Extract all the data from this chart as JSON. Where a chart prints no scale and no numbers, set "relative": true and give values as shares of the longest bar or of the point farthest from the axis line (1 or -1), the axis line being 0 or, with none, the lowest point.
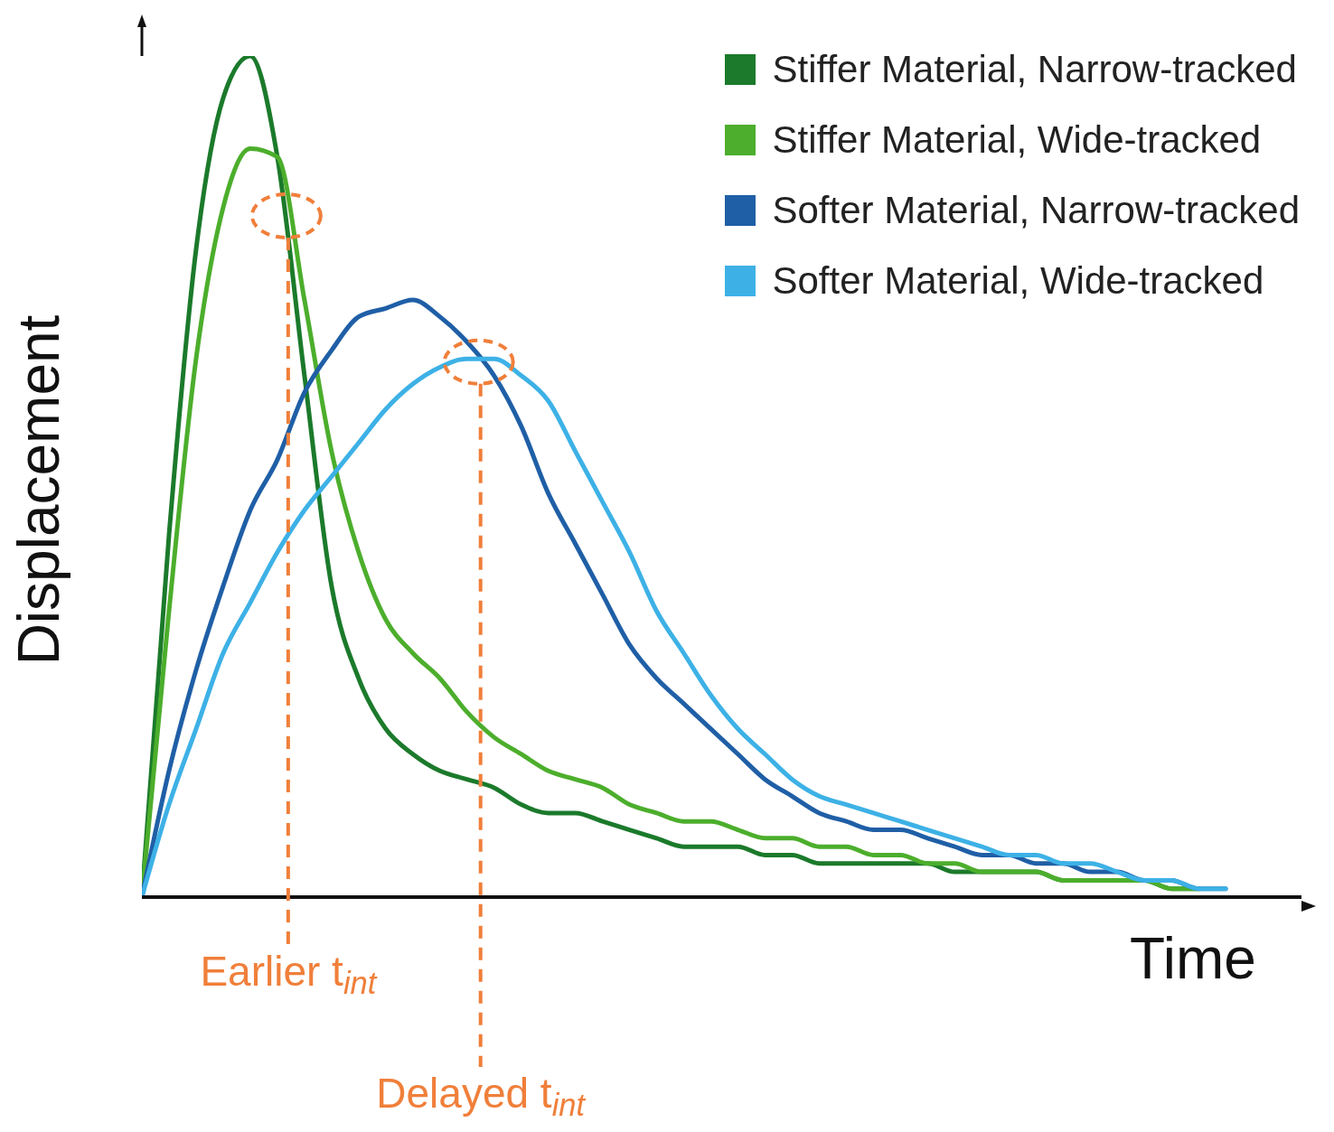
{
  "chart_data": {
    "type": "line",
    "relative": true,
    "xlabel": "Time",
    "ylabel": "Displacement",
    "legend": "top right",
    "marker": "none",
    "line_style": "solid",
    "categories": [
      null,
      null,
      null,
      null,
      null,
      null,
      null,
      null,
      null,
      null,
      null,
      null,
      null,
      null,
      null,
      null,
      null,
      null,
      null,
      null,
      null,
      null,
      null,
      null,
      null,
      null,
      null,
      null,
      null,
      null,
      null,
      null,
      null,
      null,
      null,
      null,
      null,
      null,
      null,
      null,
      null
    ],
    "series": [
      {
        "name": "Stiffer Material, Narrow-tracked",
        "color": "#1b7a2b",
        "values": [
          0,
          0.43,
          0.77,
          0.95,
          1,
          0.88,
          0.62,
          0.37,
          0.26,
          0.2,
          0.17,
          0.15,
          0.14,
          0.13,
          0.11,
          0.1,
          0.1,
          0.09,
          0.08,
          0.07,
          0.06,
          0.06,
          0.06,
          0.05,
          0.05,
          0.04,
          0.04,
          0.04,
          0.04,
          0.04,
          0.03,
          0.03,
          0.03,
          0.03,
          0.02,
          0.02,
          0.02,
          0.02,
          0.01,
          0.01,
          null
        ]
      },
      {
        "name": "Stiffer Material, Wide-tracked",
        "color": "#4cae2c",
        "values": [
          0,
          0.34,
          0.64,
          0.82,
          0.89,
          0.88,
          0.71,
          0.53,
          0.41,
          0.33,
          0.29,
          0.26,
          0.22,
          0.19,
          0.17,
          0.15,
          0.14,
          0.13,
          0.11,
          0.1,
          0.09,
          0.09,
          0.08,
          0.07,
          0.07,
          0.06,
          0.06,
          0.05,
          0.05,
          0.04,
          0.04,
          0.03,
          0.03,
          0.03,
          0.02,
          0.02,
          0.02,
          0.02,
          0.01,
          0.01,
          null
        ]
      },
      {
        "name": "Softer Material, Narrow-tracked",
        "color": "#1f5fa6",
        "values": [
          0,
          0.15,
          0.27,
          0.37,
          0.46,
          0.52,
          0.6,
          0.65,
          0.69,
          0.7,
          0.71,
          0.69,
          0.66,
          0.62,
          0.56,
          0.48,
          0.42,
          0.36,
          0.3,
          0.26,
          0.23,
          0.2,
          0.17,
          0.14,
          0.12,
          0.1,
          0.09,
          0.08,
          0.08,
          0.07,
          0.06,
          0.05,
          0.05,
          0.04,
          0.04,
          0.03,
          0.03,
          0.02,
          0.02,
          0.01,
          0.01
        ]
      },
      {
        "name": "Softer Material, Wide-tracked",
        "color": "#3db1e6",
        "values": [
          0,
          0.11,
          0.2,
          0.29,
          0.35,
          0.41,
          0.46,
          0.5,
          0.54,
          0.58,
          0.61,
          0.63,
          0.64,
          0.64,
          0.62,
          0.59,
          0.53,
          0.47,
          0.41,
          0.34,
          0.29,
          0.24,
          0.2,
          0.17,
          0.14,
          0.12,
          0.11,
          0.1,
          0.09,
          0.08,
          0.07,
          0.06,
          0.05,
          0.05,
          0.04,
          0.04,
          0.03,
          0.02,
          0.02,
          0.01,
          0.01
        ]
      }
    ],
    "annotations": [
      "Earlier t$_{int}$",
      "Delayed t$_{int}$"
    ]
  }
}
